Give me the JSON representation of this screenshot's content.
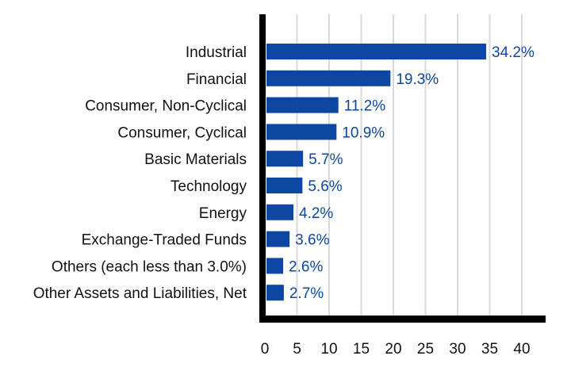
{
  "chart_data": {
    "type": "bar",
    "orientation": "horizontal",
    "categories": [
      "Industrial",
      "Financial",
      "Consumer, Non-Cyclical",
      "Consumer, Cyclical",
      "Basic Materials",
      "Technology",
      "Energy",
      "Exchange-Traded Funds",
      "Others (each less than 3.0%)",
      "Other Assets and Liabilities, Net"
    ],
    "values": [
      34.2,
      19.3,
      11.2,
      10.9,
      5.7,
      5.6,
      4.2,
      3.6,
      2.6,
      2.7
    ],
    "value_labels": [
      "34.2%",
      "19.3%",
      "11.2%",
      "10.9%",
      "5.7%",
      "5.6%",
      "4.2%",
      "3.6%",
      "2.6%",
      "2.7%"
    ],
    "xlim": [
      0,
      40
    ],
    "xticks": [
      "0",
      "5",
      "10",
      "15",
      "20",
      "25",
      "30",
      "35",
      "40"
    ],
    "grid": "vertical",
    "legend": "none",
    "colors": {
      "bar": "#0d47a1",
      "label": "#0d47a1",
      "grid": "#d9d9d9",
      "axis": "#000000"
    }
  }
}
